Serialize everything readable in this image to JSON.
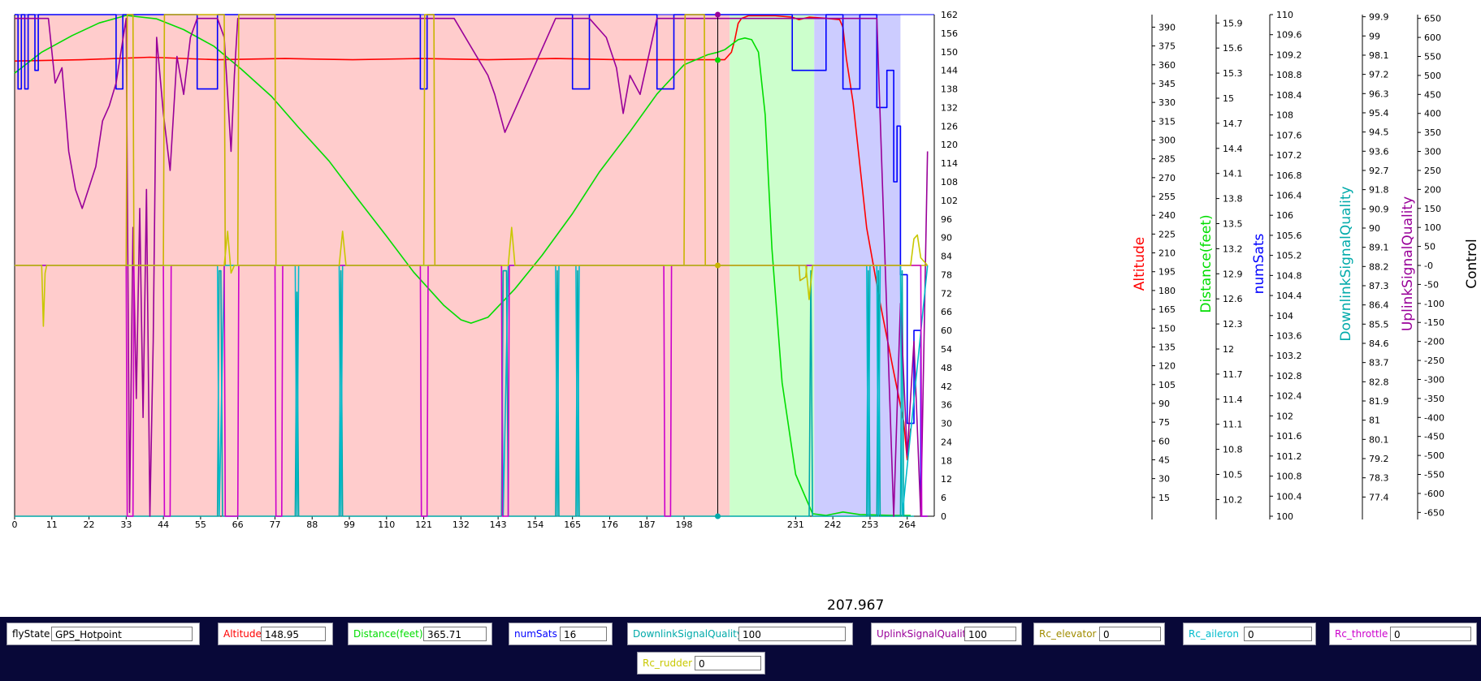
{
  "chart_data": {
    "type": "line",
    "x_axis": {
      "range": [
        0,
        272
      ],
      "ticks": [
        0,
        11,
        22,
        33,
        44,
        55,
        66,
        77,
        88,
        99,
        110,
        121,
        132,
        143,
        154,
        165,
        176,
        187,
        198,
        231,
        242,
        253,
        264
      ]
    },
    "cursor": {
      "x": 207.967,
      "label": "207.967"
    },
    "state_bands": [
      {
        "state": "GPS_Hotpoint",
        "x_start": 0,
        "x_end": 211.5,
        "color": "#ffcccc"
      },
      {
        "state": "",
        "x_start": 211.5,
        "x_end": 236.5,
        "color": "#ccffcc"
      },
      {
        "state": "",
        "x_start": 236.5,
        "x_end": 262,
        "color": "#ccccff"
      }
    ],
    "axes": [
      {
        "id": "numSats_left",
        "range": [
          0,
          162
        ],
        "ticks": [
          "0",
          "6",
          "12",
          "18",
          "24",
          "30",
          "36",
          "42",
          "48",
          "54",
          "60",
          "66",
          "72",
          "78",
          "84",
          "90",
          "96",
          "102",
          "108",
          "114",
          "120",
          "126",
          "132",
          "138",
          "144",
          "150",
          "156",
          "162"
        ]
      },
      {
        "id": "Altitude",
        "label": "Altitude",
        "color": "#ff0000",
        "range": [
          0,
          400
        ],
        "ticks": [
          "15",
          "30",
          "45",
          "60",
          "75",
          "90",
          "105",
          "120",
          "135",
          "150",
          "165",
          "180",
          "195",
          "210",
          "225",
          "240",
          "255",
          "270",
          "285",
          "300",
          "315",
          "330",
          "345",
          "360",
          "375",
          "390"
        ]
      },
      {
        "id": "Distance",
        "label": "Distance(feet)",
        "color": "#00dd00",
        "range": [
          10.0,
          16.0
        ],
        "ticks": [
          "10.2",
          "10.5",
          "10.8",
          "11.1",
          "11.4",
          "11.7",
          "12",
          "12.3",
          "12.6",
          "12.9",
          "13.2",
          "13.5",
          "13.8",
          "14.1",
          "14.4",
          "14.7",
          "15",
          "15.3",
          "15.6",
          "15.9"
        ]
      },
      {
        "id": "numSats",
        "label": "numSats",
        "color": "#0000ff",
        "range": [
          100,
          110
        ],
        "ticks": [
          "100",
          "100.4",
          "100.8",
          "101.2",
          "101.6",
          "102",
          "102.4",
          "102.8",
          "103.2",
          "103.6",
          "104",
          "104.4",
          "104.8",
          "105.2",
          "105.6",
          "106",
          "106.4",
          "106.8",
          "107.2",
          "107.6",
          "108",
          "108.4",
          "108.8",
          "109.2",
          "109.6",
          "110"
        ]
      },
      {
        "id": "DownlinkSignalQuality",
        "label": "DownlinkSignalQuality",
        "color": "#00aaaa",
        "range": [
          76.5,
          100
        ],
        "ticks": [
          "77.4",
          "78.3",
          "79.2",
          "80.1",
          "81",
          "81.9",
          "82.8",
          "83.7",
          "84.6",
          "85.5",
          "86.4",
          "87.3",
          "88.2",
          "89.1",
          "90",
          "90.9",
          "91.8",
          "92.7",
          "93.6",
          "94.5",
          "95.4",
          "96.3",
          "97.2",
          "98.1",
          "99",
          "99.9"
        ]
      },
      {
        "id": "UplinkSignalQuality",
        "label": "UplinkSignalQuality",
        "color": "#990099",
        "range": [
          -660,
          660
        ],
        "ticks": [
          "-650",
          "-600",
          "-550",
          "-500",
          "-450",
          "-400",
          "-350",
          "-300",
          "-250",
          "-200",
          "-150",
          "-100",
          "-50",
          "-0",
          "50",
          "100",
          "150",
          "200",
          "250",
          "300",
          "350",
          "400",
          "450",
          "500",
          "550",
          "600",
          "650"
        ]
      },
      {
        "id": "Control",
        "label": "Control",
        "color": "#000000"
      }
    ],
    "series": [
      {
        "name": "Altitude",
        "color": "#ff0000",
        "axis": "Altitude",
        "x": [
          0,
          20,
          40,
          60,
          80,
          100,
          120,
          140,
          160,
          180,
          200,
          210,
          212,
          213,
          214,
          215,
          217,
          220,
          225,
          230,
          232,
          235,
          240,
          244,
          245,
          246,
          248,
          252,
          256,
          260,
          263,
          264,
          265
        ],
        "y": [
          363,
          364,
          366,
          364,
          365,
          364,
          365,
          364,
          365,
          364,
          364,
          364,
          370,
          380,
          393,
          397,
          399,
          399,
          399,
          398,
          396,
          398,
          397,
          396,
          390,
          365,
          330,
          230,
          170,
          115,
          75,
          45,
          70
        ]
      },
      {
        "name": "Distance(feet)",
        "color": "#00dd00",
        "axis": "Distance",
        "x": [
          0,
          8,
          17,
          25,
          33,
          42,
          50,
          59,
          67,
          76,
          84,
          93,
          101,
          110,
          118,
          127,
          132,
          135,
          140,
          148,
          156,
          165,
          173,
          182,
          190,
          198,
          205,
          208,
          210,
          214,
          216,
          218,
          220,
          222,
          224,
          227,
          231,
          236,
          240,
          245,
          250,
          260,
          265
        ],
        "y": [
          15.3,
          15.55,
          15.75,
          15.9,
          15.99,
          15.95,
          15.82,
          15.62,
          15.35,
          15.02,
          14.65,
          14.25,
          13.82,
          13.35,
          12.92,
          12.52,
          12.35,
          12.31,
          12.38,
          12.72,
          13.12,
          13.62,
          14.12,
          14.6,
          15.05,
          15.4,
          15.52,
          15.55,
          15.58,
          15.7,
          15.72,
          15.7,
          15.55,
          14.8,
          13.2,
          11.6,
          10.5,
          10.03,
          10.01,
          10.05,
          10.02,
          10.01,
          10.01
        ]
      },
      {
        "name": "numSats",
        "color": "#0000ff",
        "axis": "numSats_left",
        "x": [
          0,
          1,
          1,
          2,
          2,
          3,
          3,
          4,
          4,
          6,
          6,
          7,
          7,
          10,
          10,
          30,
          30,
          32,
          32,
          40,
          40,
          54,
          54,
          60,
          60,
          62,
          62,
          120,
          120,
          122,
          122,
          165,
          165,
          170,
          170,
          190,
          190,
          195,
          195,
          200,
          200,
          230,
          230,
          240,
          240,
          245,
          245,
          250,
          250,
          255,
          255,
          258,
          258,
          260,
          260,
          261,
          261,
          262,
          262,
          264,
          264,
          266,
          266,
          268,
          268,
          270
        ],
        "y": [
          162,
          162,
          138,
          138,
          162,
          162,
          138,
          138,
          162,
          162,
          144,
          144,
          162,
          162,
          162,
          162,
          138,
          138,
          162,
          162,
          162,
          162,
          138,
          138,
          162,
          162,
          162,
          162,
          138,
          138,
          162,
          162,
          138,
          138,
          162,
          162,
          138,
          138,
          162,
          162,
          162,
          162,
          144,
          144,
          162,
          162,
          138,
          138,
          162,
          162,
          132,
          132,
          144,
          144,
          108,
          108,
          126,
          126,
          78,
          78,
          30,
          30,
          60,
          60,
          0,
          0
        ]
      },
      {
        "name": "DownlinkSignalQuality",
        "color": "#00aaaa",
        "axis": "DownlinkSignalQuality",
        "x": [
          0,
          60,
          60.5,
          61,
          61.5,
          62,
          83,
          83.5,
          84,
          96,
          96.5,
          97,
          144,
          144.5,
          145,
          145.5,
          146,
          160,
          160.5,
          161,
          166,
          166.5,
          167,
          235,
          235.5,
          236,
          252,
          252.5,
          253,
          255,
          255.5,
          256,
          262,
          262.5,
          263,
          266
        ],
        "y": [
          76.5,
          76.5,
          88,
          88,
          76.5,
          76.5,
          76.5,
          87,
          76.5,
          76.5,
          88,
          76.5,
          76.5,
          88,
          88,
          88,
          76.5,
          76.5,
          88,
          76.5,
          76.5,
          88,
          76.5,
          76.5,
          88,
          76.5,
          76.5,
          88,
          76.5,
          76.5,
          88,
          76.5,
          76.5,
          88,
          76.5,
          76.5
        ]
      },
      {
        "name": "UplinkSignalQuality",
        "color": "#990099",
        "axis": "UplinkSignalQuality",
        "x": [
          0,
          10,
          12,
          14,
          16,
          18,
          20,
          24,
          26,
          28,
          30,
          33,
          34,
          35,
          36,
          37,
          38,
          39,
          40,
          41,
          42,
          44,
          46,
          48,
          50,
          52,
          54,
          58,
          60,
          62,
          64,
          65,
          66,
          70,
          80,
          95,
          110,
          130,
          140,
          142,
          145,
          150,
          160,
          170,
          175,
          178,
          180,
          182,
          185,
          190,
          192,
          195,
          210,
          232,
          240,
          250,
          255,
          260,
          262,
          264,
          266,
          268,
          270
        ],
        "y": [
          650,
          650,
          480,
          520,
          300,
          200,
          150,
          260,
          380,
          420,
          480,
          650,
          -650,
          100,
          -350,
          150,
          -400,
          200,
          -660,
          -200,
          600,
          400,
          250,
          550,
          450,
          600,
          650,
          650,
          650,
          600,
          300,
          500,
          650,
          650,
          650,
          650,
          650,
          650,
          500,
          450,
          350,
          450,
          650,
          650,
          600,
          520,
          400,
          500,
          450,
          650,
          650,
          650,
          650,
          650,
          650,
          650,
          650,
          -660,
          -100,
          -500,
          -200,
          -660,
          300
        ]
      },
      {
        "name": "Rc_elevator",
        "color": "#c8b400",
        "axis": "UplinkSignalQuality",
        "x": [
          0,
          33,
          33.3,
          35,
          35.3,
          44,
          44.3,
          62,
          62.3,
          66,
          66.3,
          77,
          77.3,
          121,
          121.3,
          124,
          124.3,
          198,
          198.3,
          204,
          204.3,
          232,
          232.3,
          234,
          234.3,
          270
        ],
        "y": [
          0,
          0,
          660,
          660,
          0,
          0,
          660,
          660,
          0,
          0,
          660,
          660,
          0,
          0,
          660,
          660,
          0,
          0,
          660,
          660,
          0,
          0,
          -40,
          -30,
          0,
          0
        ]
      },
      {
        "name": "Rc_aileron",
        "color": "#00bbcc",
        "axis": "UplinkSignalQuality",
        "x": [
          0,
          60,
          60.5,
          62,
          83,
          83.5,
          84,
          96,
          96.5,
          97,
          144,
          144.5,
          146,
          160,
          160.5,
          161,
          166,
          166.5,
          167,
          252,
          252.5,
          253,
          255,
          255.5,
          256,
          262,
          262.5,
          270
        ],
        "y": [
          0,
          0,
          -660,
          0,
          0,
          -660,
          0,
          0,
          -660,
          0,
          0,
          -660,
          0,
          0,
          -660,
          0,
          0,
          -660,
          0,
          0,
          -660,
          0,
          0,
          -660,
          0,
          0,
          -660,
          0
        ]
      },
      {
        "name": "Rc_throttle",
        "color": "#cc00cc",
        "axis": "UplinkSignalQuality",
        "x": [
          0,
          33,
          33.3,
          35,
          35.3,
          44,
          44.3,
          46,
          46.3,
          62,
          62.3,
          66,
          66.3,
          77,
          77.3,
          79,
          79.3,
          120,
          120.3,
          122,
          122.3,
          144,
          144.3,
          146,
          146.3,
          192,
          192.3,
          194,
          194.3,
          268,
          268.3,
          270
        ],
        "y": [
          0,
          0,
          -660,
          -660,
          0,
          0,
          -660,
          -660,
          0,
          0,
          -660,
          -660,
          0,
          0,
          -660,
          -660,
          0,
          0,
          -660,
          -660,
          0,
          0,
          -660,
          -660,
          0,
          0,
          -660,
          -660,
          0,
          0,
          -660,
          -660
        ]
      },
      {
        "name": "Rc_rudder",
        "color": "#c8c800",
        "axis": "UplinkSignalQuality",
        "x": [
          0,
          8,
          8.5,
          9,
          9.5,
          10,
          62,
          63,
          64,
          65,
          96,
          97,
          98,
          146,
          147,
          148,
          234,
          235,
          236,
          265,
          266,
          267,
          268,
          270
        ],
        "y": [
          0,
          0,
          -160,
          -20,
          0,
          0,
          0,
          90,
          -20,
          0,
          0,
          90,
          0,
          0,
          100,
          0,
          0,
          -90,
          0,
          0,
          70,
          80,
          20,
          0
        ]
      }
    ]
  },
  "cursor_readout": "207.967",
  "status_fields": [
    {
      "id": "flyState",
      "label": "flyState",
      "value": "GPS_Hotpoint",
      "label_color": "#000000"
    },
    {
      "id": "Altitude",
      "label": "Altitude",
      "value": "148.95",
      "label_color": "#ff0000"
    },
    {
      "id": "Distance",
      "label": "Distance(feet)",
      "value": "365.71",
      "label_color": "#00dd00"
    },
    {
      "id": "numSats",
      "label": "numSats",
      "value": "16",
      "label_color": "#0000ff"
    },
    {
      "id": "DownlinkSignalQuality",
      "label": "DownlinkSignalQuality",
      "value": "100",
      "label_color": "#00aaaa"
    },
    {
      "id": "UplinkSignalQuality",
      "label": "UplinkSignalQuality",
      "value": "100",
      "label_color": "#990099"
    },
    {
      "id": "Rc_elevator",
      "label": "Rc_elevator",
      "value": "0",
      "label_color": "#a08c00"
    },
    {
      "id": "Rc_aileron",
      "label": "Rc_aileron",
      "value": "0",
      "label_color": "#00bbcc"
    },
    {
      "id": "Rc_throttle",
      "label": "Rc_throttle",
      "value": "0",
      "label_color": "#cc00cc"
    },
    {
      "id": "Rc_rudder",
      "label": "Rc_rudder",
      "value": "0",
      "label_color": "#c8c800"
    }
  ]
}
